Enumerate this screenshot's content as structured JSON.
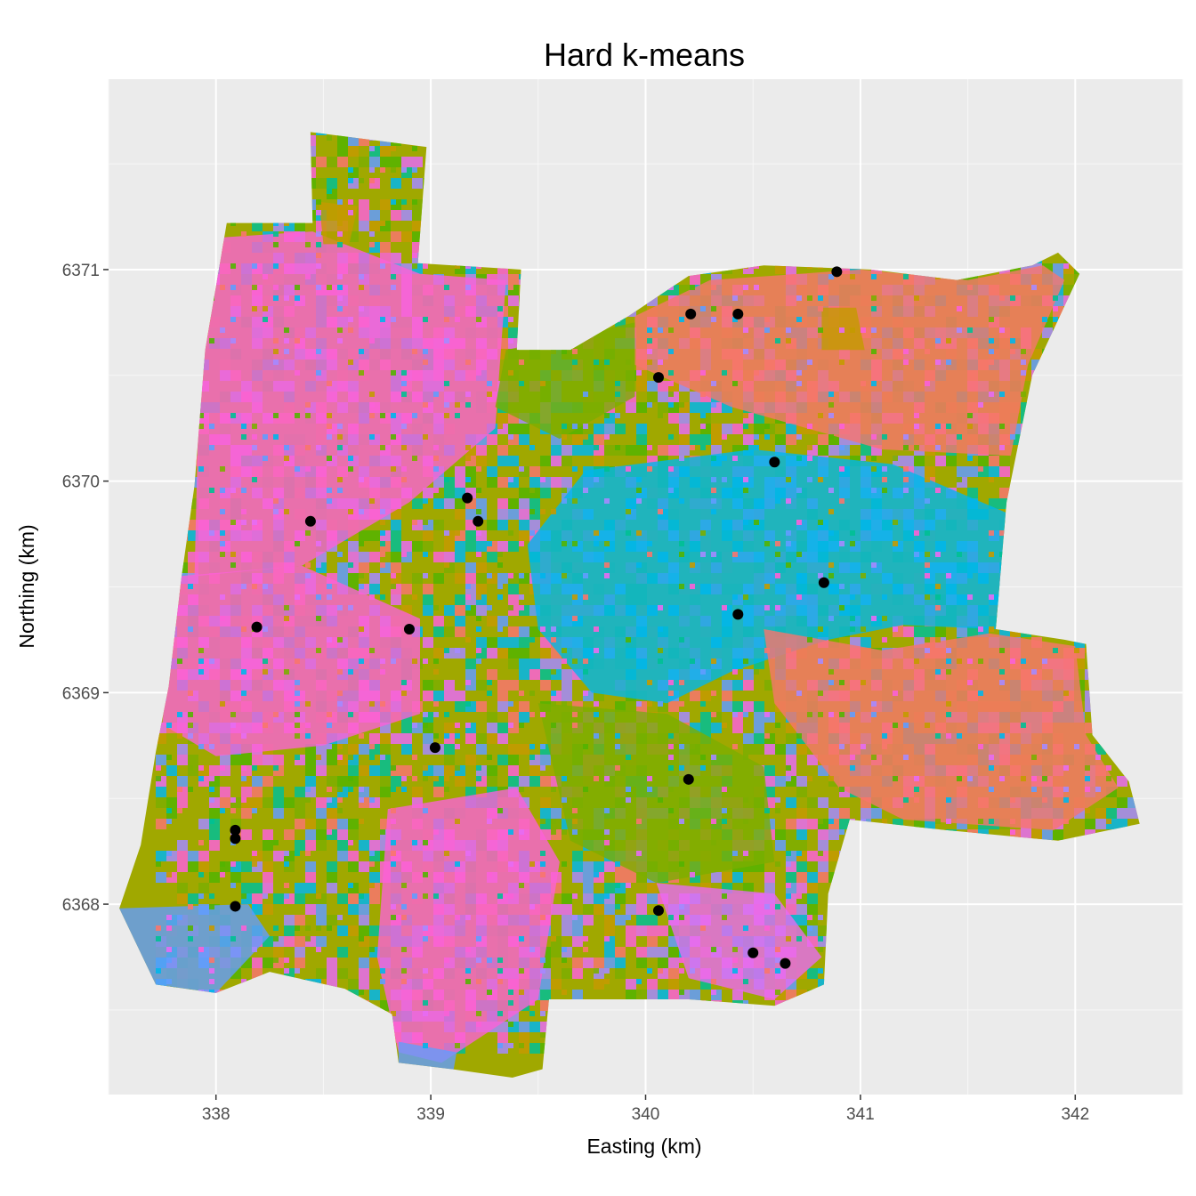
{
  "chart_data": {
    "type": "scatter",
    "title": "Hard k-means",
    "xlabel": "Easting (km)",
    "ylabel": "Northing (km)",
    "xlim": [
      337.5,
      342.5
    ],
    "ylim": [
      6367.1,
      6371.9
    ],
    "x_ticks": [
      338,
      339,
      340,
      341,
      342
    ],
    "y_ticks": [
      6368,
      6369,
      6370,
      6371
    ],
    "x_tick_labels": [
      "338",
      "339",
      "340",
      "341",
      "342"
    ],
    "y_tick_labels": [
      "6368",
      "6369",
      "6370",
      "6371"
    ],
    "grid": true,
    "background": "#ebebeb",
    "point_color": "#000000",
    "cluster_colors": [
      "#f8766d",
      "#c49a00",
      "#53b400",
      "#00c094",
      "#00b6eb",
      "#a58aff",
      "#fb61d7",
      "#e76bf3",
      "#7cae00",
      "#619cff"
    ],
    "map_outline": [
      [
        337.55,
        6367.98
      ],
      [
        337.65,
        6368.28
      ],
      [
        337.72,
        6368.72
      ],
      [
        337.78,
        6369.03
      ],
      [
        337.84,
        6369.55
      ],
      [
        337.9,
        6369.98
      ],
      [
        337.95,
        6370.62
      ],
      [
        338.05,
        6371.22
      ],
      [
        338.45,
        6371.22
      ],
      [
        338.44,
        6371.65
      ],
      [
        338.98,
        6371.58
      ],
      [
        338.94,
        6371.03
      ],
      [
        339.42,
        6371.0
      ],
      [
        339.4,
        6370.62
      ],
      [
        339.65,
        6370.62
      ],
      [
        339.92,
        6370.78
      ],
      [
        340.2,
        6370.97
      ],
      [
        340.55,
        6371.02
      ],
      [
        341.05,
        6371.0
      ],
      [
        341.45,
        6370.95
      ],
      [
        341.8,
        6371.02
      ],
      [
        341.92,
        6371.08
      ],
      [
        342.02,
        6370.98
      ],
      [
        341.8,
        6370.5
      ],
      [
        341.68,
        6369.9
      ],
      [
        341.63,
        6369.3
      ],
      [
        341.95,
        6369.25
      ],
      [
        342.05,
        6369.23
      ],
      [
        342.08,
        6368.8
      ],
      [
        342.25,
        6368.58
      ],
      [
        342.3,
        6368.38
      ],
      [
        341.92,
        6368.3
      ],
      [
        341.4,
        6368.35
      ],
      [
        340.95,
        6368.4
      ],
      [
        340.85,
        6368.05
      ],
      [
        340.83,
        6367.62
      ],
      [
        340.6,
        6367.52
      ],
      [
        340.2,
        6367.55
      ],
      [
        339.55,
        6367.55
      ],
      [
        339.52,
        6367.22
      ],
      [
        339.38,
        6367.18
      ],
      [
        339.1,
        6367.22
      ],
      [
        338.85,
        6367.25
      ],
      [
        338.82,
        6367.48
      ],
      [
        338.6,
        6367.6
      ],
      [
        338.25,
        6367.68
      ],
      [
        338.0,
        6367.58
      ],
      [
        337.72,
        6367.62
      ],
      [
        337.55,
        6367.98
      ]
    ],
    "cluster_regions": [
      {
        "cluster": "cyan",
        "color": "#00b6eb",
        "polygon": [
          [
            339.72,
            6370.05
          ],
          [
            340.5,
            6370.15
          ],
          [
            341.15,
            6370.08
          ],
          [
            341.68,
            6369.85
          ],
          [
            341.63,
            6369.3
          ],
          [
            341.2,
            6369.32
          ],
          [
            340.85,
            6369.25
          ],
          [
            340.4,
            6369.1
          ],
          [
            340.1,
            6368.95
          ],
          [
            339.75,
            6369.0
          ],
          [
            339.5,
            6369.3
          ],
          [
            339.45,
            6369.7
          ]
        ]
      },
      {
        "cluster": "salmon-ne",
        "color": "#f8766d",
        "polygon": [
          [
            340.3,
            6370.95
          ],
          [
            341.0,
            6371.0
          ],
          [
            341.5,
            6370.95
          ],
          [
            341.85,
            6371.02
          ],
          [
            341.95,
            6370.95
          ],
          [
            341.78,
            6370.55
          ],
          [
            341.7,
            6370.12
          ],
          [
            341.1,
            6370.15
          ],
          [
            340.4,
            6370.35
          ],
          [
            339.95,
            6370.55
          ],
          [
            339.95,
            6370.78
          ]
        ]
      },
      {
        "cluster": "salmon-se",
        "color": "#f8766d",
        "polygon": [
          [
            340.55,
            6369.3
          ],
          [
            341.1,
            6369.2
          ],
          [
            341.6,
            6369.28
          ],
          [
            342.0,
            6369.22
          ],
          [
            342.05,
            6368.8
          ],
          [
            342.2,
            6368.55
          ],
          [
            341.9,
            6368.35
          ],
          [
            341.2,
            6368.4
          ],
          [
            340.9,
            6368.55
          ],
          [
            340.6,
            6368.95
          ]
        ]
      },
      {
        "cluster": "magenta-nw",
        "color": "#fb61d7",
        "polygon": [
          [
            338.0,
            6371.15
          ],
          [
            338.45,
            6371.18
          ],
          [
            338.95,
            6370.98
          ],
          [
            339.35,
            6370.95
          ],
          [
            339.3,
            6370.25
          ],
          [
            338.9,
            6369.9
          ],
          [
            338.4,
            6369.6
          ],
          [
            337.9,
            6369.55
          ],
          [
            337.92,
            6370.4
          ]
        ]
      },
      {
        "cluster": "magenta-w",
        "color": "#fb61d7",
        "polygon": [
          [
            337.82,
            6369.55
          ],
          [
            338.4,
            6369.6
          ],
          [
            338.95,
            6369.35
          ],
          [
            338.95,
            6368.9
          ],
          [
            338.5,
            6368.75
          ],
          [
            338.0,
            6368.7
          ],
          [
            337.75,
            6368.85
          ]
        ]
      },
      {
        "cluster": "magenta-s",
        "color": "#fb61d7",
        "polygon": [
          [
            338.8,
            6368.45
          ],
          [
            339.4,
            6368.55
          ],
          [
            339.6,
            6368.2
          ],
          [
            339.5,
            6367.55
          ],
          [
            339.05,
            6367.25
          ],
          [
            338.85,
            6367.3
          ],
          [
            338.75,
            6367.75
          ]
        ]
      },
      {
        "cluster": "magenta-se",
        "color": "#e76bf3",
        "polygon": [
          [
            340.05,
            6368.1
          ],
          [
            340.6,
            6368.05
          ],
          [
            340.82,
            6367.75
          ],
          [
            340.6,
            6367.55
          ],
          [
            340.2,
            6367.65
          ]
        ]
      },
      {
        "cluster": "olive",
        "color": "#7cae00",
        "polygon": [
          [
            339.35,
            6370.62
          ],
          [
            339.95,
            6370.75
          ],
          [
            339.95,
            6370.4
          ],
          [
            339.6,
            6370.2
          ],
          [
            339.3,
            6370.35
          ]
        ]
      },
      {
        "cluster": "olive-2",
        "color": "#7cae00",
        "polygon": [
          [
            339.5,
            6368.95
          ],
          [
            340.1,
            6368.9
          ],
          [
            340.55,
            6368.65
          ],
          [
            340.6,
            6368.2
          ],
          [
            340.05,
            6368.1
          ],
          [
            339.65,
            6368.3
          ]
        ]
      },
      {
        "cluster": "ochre-n",
        "color": "#c49a00",
        "polygon": [
          [
            338.48,
            6371.32
          ],
          [
            338.66,
            6371.3
          ],
          [
            338.62,
            6371.12
          ],
          [
            338.5,
            6371.12
          ]
        ]
      },
      {
        "cluster": "ochre-ne",
        "color": "#c49a00",
        "polygon": [
          [
            340.82,
            6370.82
          ],
          [
            340.98,
            6370.82
          ],
          [
            341.02,
            6370.62
          ],
          [
            340.82,
            6370.62
          ]
        ]
      },
      {
        "cluster": "blue-sw",
        "color": "#619cff",
        "polygon": [
          [
            337.55,
            6367.98
          ],
          [
            338.15,
            6368.0
          ],
          [
            338.25,
            6367.85
          ],
          [
            338.0,
            6367.58
          ],
          [
            337.72,
            6367.62
          ],
          [
            337.6,
            6367.85
          ]
        ]
      },
      {
        "cluster": "blue-s",
        "color": "#619cff",
        "polygon": [
          [
            338.85,
            6367.35
          ],
          [
            339.12,
            6367.3
          ],
          [
            339.1,
            6367.18
          ],
          [
            338.85,
            6367.2
          ]
        ]
      }
    ],
    "points": [
      {
        "x": 338.44,
        "y": 6369.81
      },
      {
        "x": 338.19,
        "y": 6369.31
      },
      {
        "x": 338.9,
        "y": 6369.3
      },
      {
        "x": 339.17,
        "y": 6369.92
      },
      {
        "x": 339.22,
        "y": 6369.81
      },
      {
        "x": 339.02,
        "y": 6368.74
      },
      {
        "x": 338.09,
        "y": 6368.35
      },
      {
        "x": 338.09,
        "y": 6368.31
      },
      {
        "x": 338.09,
        "y": 6367.99
      },
      {
        "x": 340.06,
        "y": 6370.49
      },
      {
        "x": 340.21,
        "y": 6370.79
      },
      {
        "x": 340.43,
        "y": 6370.79
      },
      {
        "x": 340.89,
        "y": 6370.99
      },
      {
        "x": 340.6,
        "y": 6370.09
      },
      {
        "x": 340.83,
        "y": 6369.52
      },
      {
        "x": 340.43,
        "y": 6369.37
      },
      {
        "x": 340.2,
        "y": 6368.59
      },
      {
        "x": 340.06,
        "y": 6367.97
      },
      {
        "x": 340.5,
        "y": 6367.77
      },
      {
        "x": 340.65,
        "y": 6367.72
      }
    ]
  }
}
